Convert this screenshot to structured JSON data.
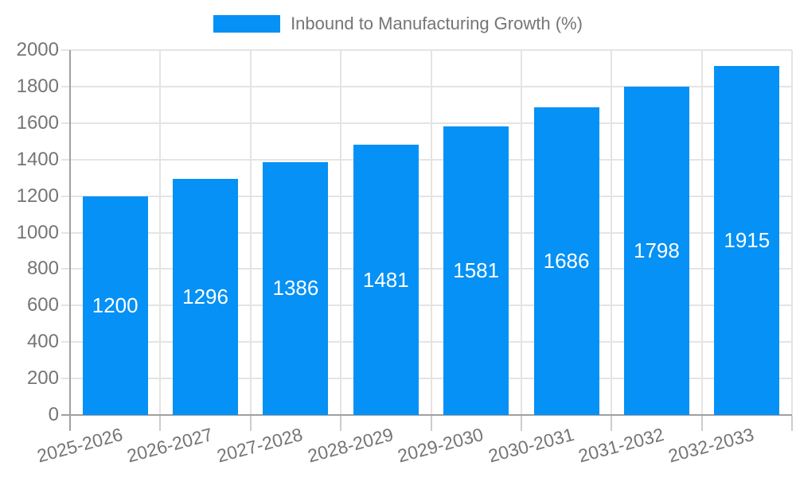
{
  "legend": {
    "label": "Inbound to Manufacturing Growth (%)"
  },
  "colors": {
    "bar": "#0591f5",
    "bar_label_text": "#ffffff",
    "tick_text": "#757575",
    "legend_text": "#757575",
    "axis_line": "#a0a0a0",
    "gridline": "#e4e4e4",
    "tick_mark": "#cccccc",
    "background": "#ffffff"
  },
  "chart_data": {
    "type": "bar",
    "title": "",
    "categories": [
      "2025-2026",
      "2026-2027",
      "2027-2028",
      "2028-2029",
      "2029-2030",
      "2030-2031",
      "2031-2032",
      "2032-2033"
    ],
    "series": [
      {
        "name": "Inbound to Manufacturing Growth (%)",
        "values": [
          1200,
          1296,
          1386,
          1481,
          1581,
          1686,
          1798,
          1915
        ]
      }
    ],
    "bar_value_labels": [
      "1200",
      "1296",
      "1386",
      "1481",
      "1581",
      "1686",
      "1798",
      "1915"
    ],
    "xlabel": "",
    "ylabel": "",
    "ylim": [
      0,
      2000
    ],
    "yticks": [
      0,
      200,
      400,
      600,
      800,
      1000,
      1200,
      1400,
      1600,
      1800,
      2000
    ],
    "grid": true,
    "legend_position": "top-center",
    "x_tick_rotation_deg": -15,
    "value_label_position": "center-of-bar"
  }
}
